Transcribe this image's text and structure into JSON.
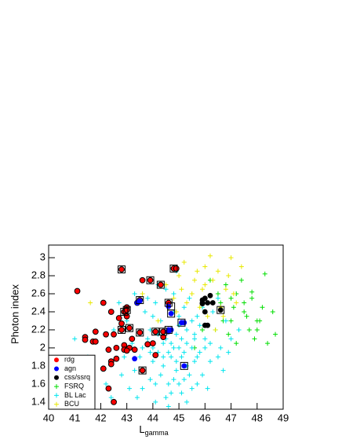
{
  "chart_data": {
    "type": "scatter",
    "x_label": "L",
    "x_label_sub": "gamma",
    "y_label": "Photon index",
    "xlim": [
      40,
      49
    ],
    "xticks": [
      40,
      41,
      42,
      43,
      44,
      45,
      46,
      47,
      48,
      49
    ],
    "ylim": [
      1.32,
      3.14
    ],
    "yticks": [
      1.4,
      1.6,
      1.8,
      2,
      2.2,
      2.4,
      2.6,
      2.8,
      3
    ],
    "legend": "bottom-left",
    "series": [
      {
        "name": "rdg",
        "color": "#ff0000",
        "marker": "circle",
        "x": [
          41.1,
          41.4,
          41.4,
          41.7,
          41.8,
          41.8,
          42.1,
          42.1,
          42.2,
          42.3,
          42.4,
          42.4,
          42.4,
          42.5,
          42.5,
          42.6,
          42.6,
          42.7,
          42.8,
          42.8,
          42.8,
          42.9,
          42.9,
          42.9,
          43.0,
          43.0,
          43.0,
          43.1,
          43.1,
          43.0,
          43.3,
          43.4,
          43.5,
          43.5,
          43.6,
          43.6,
          43.8,
          43.9,
          44.0,
          44.1,
          44.1,
          44.3,
          44.4,
          44.4,
          44.6,
          44.8,
          44.9,
          42.3,
          43.2
        ],
        "values": [
          2.63,
          2.12,
          2.09,
          2.07,
          2.18,
          2.07,
          2.5,
          1.77,
          2.15,
          1.55,
          2.4,
          1.85,
          1.82,
          2.15,
          1.4,
          2.0,
          1.88,
          2.33,
          2.27,
          2.2,
          2.87,
          2.4,
          2.03,
          1.98,
          2.45,
          2.42,
          2.35,
          2.22,
          2.0,
          1.97,
          1.98,
          2.5,
          2.53,
          2.17,
          2.75,
          1.75,
          2.04,
          2.75,
          2.05,
          2.18,
          1.92,
          2.7,
          2.18,
          2.12,
          2.5,
          2.88,
          2.88,
          1.98,
          2.1
        ]
      },
      {
        "name": "agn",
        "color": "#0000ff",
        "marker": "circle",
        "x": [
          43.3,
          43.4,
          43.5,
          44.6,
          44.6,
          44.7,
          44.7,
          45.1,
          45.2,
          45.2,
          44.6
        ],
        "values": [
          1.88,
          2.5,
          2.52,
          2.18,
          2.46,
          2.38,
          2.2,
          2.28,
          2.28,
          1.8,
          2.2
        ]
      },
      {
        "name": "css/ssrq",
        "color": "#000000",
        "marker": "circle",
        "x": [
          45.9,
          45.9,
          46.0,
          46.0,
          46.0,
          46.1,
          46.1,
          46.2,
          46.3,
          46.6,
          45.9
        ],
        "values": [
          2.5,
          2.53,
          2.55,
          2.4,
          2.25,
          2.25,
          2.5,
          2.58,
          2.5,
          2.42,
          2.49
        ]
      },
      {
        "name": "FSRQ",
        "color": "#00dd00",
        "marker": "plus",
        "x": [
          46.6,
          47.0,
          47.2,
          47.5,
          47.8,
          48.0,
          47.3,
          46.8,
          47.6,
          48.2,
          48.6,
          48.7,
          47.9,
          47.1,
          46.5,
          47.4,
          48.3,
          47.7,
          46.9,
          48.1,
          45.6,
          47.0,
          48.4,
          46.2,
          47.8,
          46.7,
          48.0,
          47.5,
          45.9,
          47.2
        ],
        "values": [
          2.5,
          2.3,
          2.6,
          2.4,
          2.55,
          2.3,
          2.2,
          2.7,
          2.35,
          2.45,
          2.4,
          2.15,
          2.1,
          2.45,
          2.6,
          2.75,
          2.82,
          2.2,
          2.15,
          2.3,
          2.0,
          2.55,
          2.05,
          2.75,
          2.62,
          2.3,
          2.2,
          2.5,
          2.2,
          2.05
        ]
      },
      {
        "name": "BL Lac",
        "color": "#00e5ee",
        "marker": "plus",
        "x": [
          44.8,
          45.1,
          44.5,
          45.3,
          44.2,
          45.6,
          44.9,
          45.0,
          44.0,
          45.8,
          44.6,
          43.8,
          45.4,
          46.0,
          44.3,
          45.7,
          43.5,
          44.7,
          46.2,
          45.2,
          43.9,
          44.4,
          45.5,
          46.4,
          43.2,
          44.1,
          45.9,
          44.8,
          43.6,
          46.6,
          42.8,
          44.5,
          45.3,
          46.8,
          43.0,
          44.9,
          42.5,
          45.0,
          46.1,
          43.4,
          47.0,
          44.2,
          45.6,
          44.6,
          43.7,
          45.1,
          44.0,
          46.3,
          43.3,
          44.7,
          45.5,
          44.4,
          45.2,
          43.9,
          45.8,
          44.9,
          46.5,
          42.9,
          45.0,
          44.3,
          45.7,
          43.6,
          46.0,
          44.6,
          41.0,
          41.5,
          42.2,
          44.8,
          45.3,
          43.1,
          46.7,
          44.1,
          45.9,
          43.8,
          44.5,
          45.4,
          42.7,
          46.9,
          44.0,
          45.1,
          43.5,
          44.7,
          45.6,
          44.2,
          45.0,
          44.9,
          45.3,
          44.4,
          43.9,
          45.7,
          46.2,
          42.4,
          44.6,
          47.3,
          43.3,
          44.8,
          45.5,
          44.1,
          46.5,
          45.2
        ],
        "values": [
          2.0,
          1.9,
          2.1,
          2.05,
          1.95,
          2.15,
          1.75,
          2.25,
          1.85,
          1.95,
          1.6,
          2.1,
          1.7,
          2.1,
          2.3,
          2.35,
          1.9,
          1.5,
          1.85,
          2.45,
          1.65,
          1.8,
          1.55,
          2.2,
          2.05,
          2.5,
          1.7,
          2.6,
          1.55,
          2.0,
          1.7,
          1.45,
          1.4,
          2.3,
          2.3,
          2.85,
          2.2,
          1.6,
          1.55,
          1.45,
          2.1,
          2.7,
          1.85,
          2.2,
          2.4,
          2.1,
          2.0,
          2.4,
          1.75,
          1.9,
          2.0,
          2.05,
          1.95,
          2.2,
          2.25,
          1.85,
          1.9,
          1.9,
          2.35,
          1.7,
          1.6,
          2.0,
          2.0,
          1.95,
          2.1,
          1.9,
          1.6,
          2.4,
          1.8,
          1.55,
          1.75,
          1.4,
          2.45,
          2.55,
          2.65,
          2.55,
          2.5,
          1.95,
          2.35,
          1.5,
          2.15,
          2.05,
          2.1,
          2.15,
          2.0,
          2.15,
          2.2,
          1.9,
          1.95,
          1.9,
          2.05,
          1.45,
          1.35,
          2.2,
          2.6,
          1.65,
          2.3,
          1.6,
          2.55,
          1.65
        ]
      },
      {
        "name": "BCU",
        "color": "#e8e800",
        "marker": "plus",
        "x": [
          44.5,
          45.0,
          45.5,
          46.0,
          46.3,
          45.8,
          46.8,
          47.0,
          46.5,
          45.2,
          44.8,
          46.1,
          47.2,
          45.6,
          46.9,
          44.2,
          45.9,
          46.4,
          43.6,
          47.4,
          45.3,
          46.6,
          44.9,
          46.2,
          45.1,
          47.1,
          46.0,
          41.6,
          45.7,
          46.7
        ],
        "values": [
          2.7,
          2.8,
          2.6,
          2.9,
          2.75,
          2.45,
          2.65,
          3.0,
          2.85,
          2.95,
          2.55,
          2.35,
          2.5,
          2.75,
          2.8,
          2.3,
          2.65,
          2.2,
          2.6,
          2.9,
          2.5,
          2.45,
          2.4,
          3.02,
          2.65,
          2.6,
          2.7,
          2.5,
          2.85,
          2.35
        ]
      },
      {
        "color": "#000000",
        "marker": "square",
        "x": [
          42.8,
          43.9,
          44.8,
          42.8,
          43.0,
          43.5,
          44.1,
          44.4,
          44.6,
          44.7,
          44.7,
          44.6,
          45.1,
          45.2,
          43.6,
          43.5,
          44.3,
          43.1,
          42.9,
          46.6
        ],
        "values": [
          2.87,
          2.75,
          2.88,
          2.2,
          2.42,
          2.17,
          2.18,
          2.18,
          2.5,
          2.46,
          2.38,
          2.2,
          2.28,
          1.8,
          1.75,
          2.53,
          2.7,
          2.22,
          2.4,
          2.42
        ]
      }
    ]
  }
}
